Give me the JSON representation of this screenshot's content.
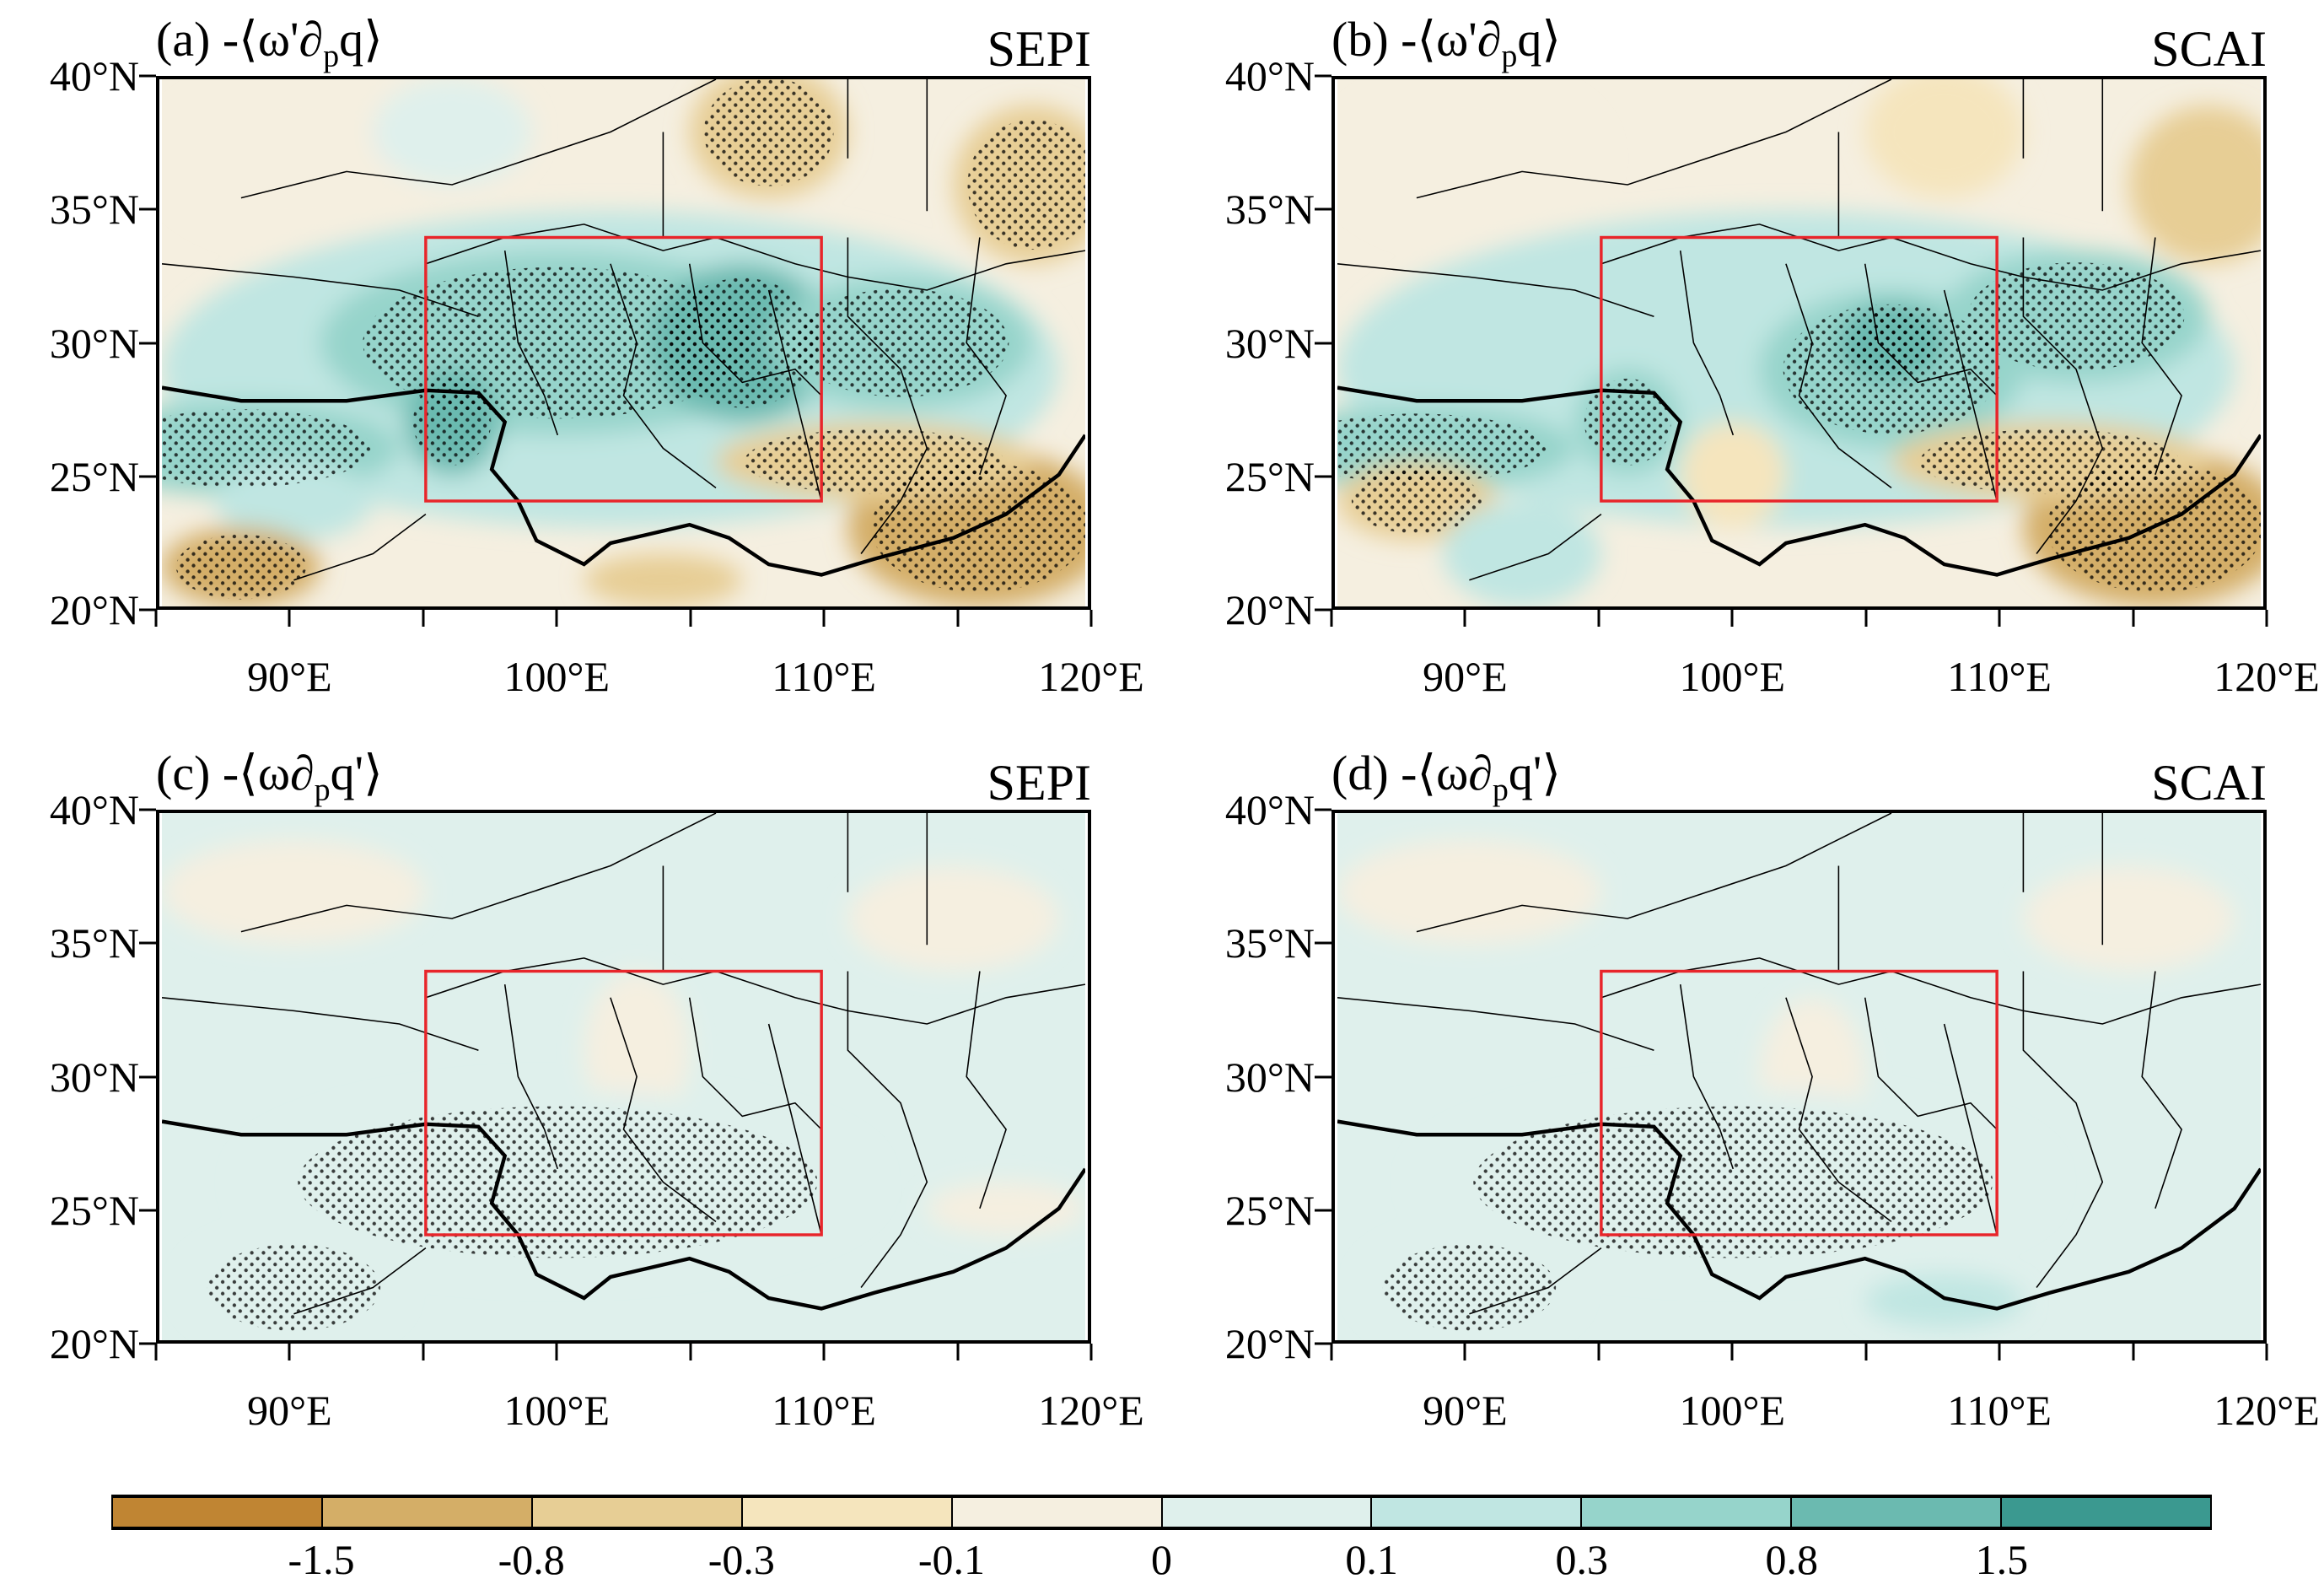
{
  "chart_data": [
    {
      "type": "heatmap",
      "panel": "a",
      "title_prefix": "(a) -⟨ω'∂",
      "title_sub": "p",
      "title_suffix": "q⟩",
      "index": "SEPI"
    },
    {
      "type": "heatmap",
      "panel": "b",
      "title_prefix": "(b) -⟨ω'∂",
      "title_sub": "p",
      "title_suffix": "q⟩",
      "index": "SCAI"
    },
    {
      "type": "heatmap",
      "panel": "c",
      "title_prefix": "(c) -⟨ω∂",
      "title_sub": "p",
      "title_suffix": "q'⟩",
      "index": "SEPI"
    },
    {
      "type": "heatmap",
      "panel": "d",
      "title_prefix": "(d) -⟨ω∂",
      "title_sub": "p",
      "title_suffix": "q'⟩",
      "index": "SCAI"
    }
  ],
  "axes": {
    "xlim": [
      85,
      120
    ],
    "ylim": [
      20,
      40
    ],
    "x_ticks": [
      {
        "v": 90,
        "label": "90°E"
      },
      {
        "v": 100,
        "label": "100°E"
      },
      {
        "v": 110,
        "label": "110°E"
      },
      {
        "v": 120,
        "label": "120°E"
      }
    ],
    "y_ticks": [
      {
        "v": 20,
        "label": "20°N"
      },
      {
        "v": 25,
        "label": "25°N"
      },
      {
        "v": 30,
        "label": "30°N"
      },
      {
        "v": 35,
        "label": "35°N"
      },
      {
        "v": 40,
        "label": "40°N"
      }
    ],
    "minor_x": [
      85,
      95,
      105,
      115
    ]
  },
  "region_box": {
    "lon": [
      95,
      110
    ],
    "lat": [
      24,
      34
    ],
    "color": "#e8252a"
  },
  "colorbar": {
    "levels": [
      "-1.5",
      "-0.8",
      "-0.3",
      "-0.1",
      "0",
      "0.1",
      "0.3",
      "0.8",
      "1.5"
    ],
    "colors": [
      "#c08533",
      "#d4ae67",
      "#e7ce95",
      "#f5e5bd",
      "#f5efe0",
      "#dff0ec",
      "#c0e6e2",
      "#96d4cb",
      "#6bbab0",
      "#3b9990"
    ]
  }
}
